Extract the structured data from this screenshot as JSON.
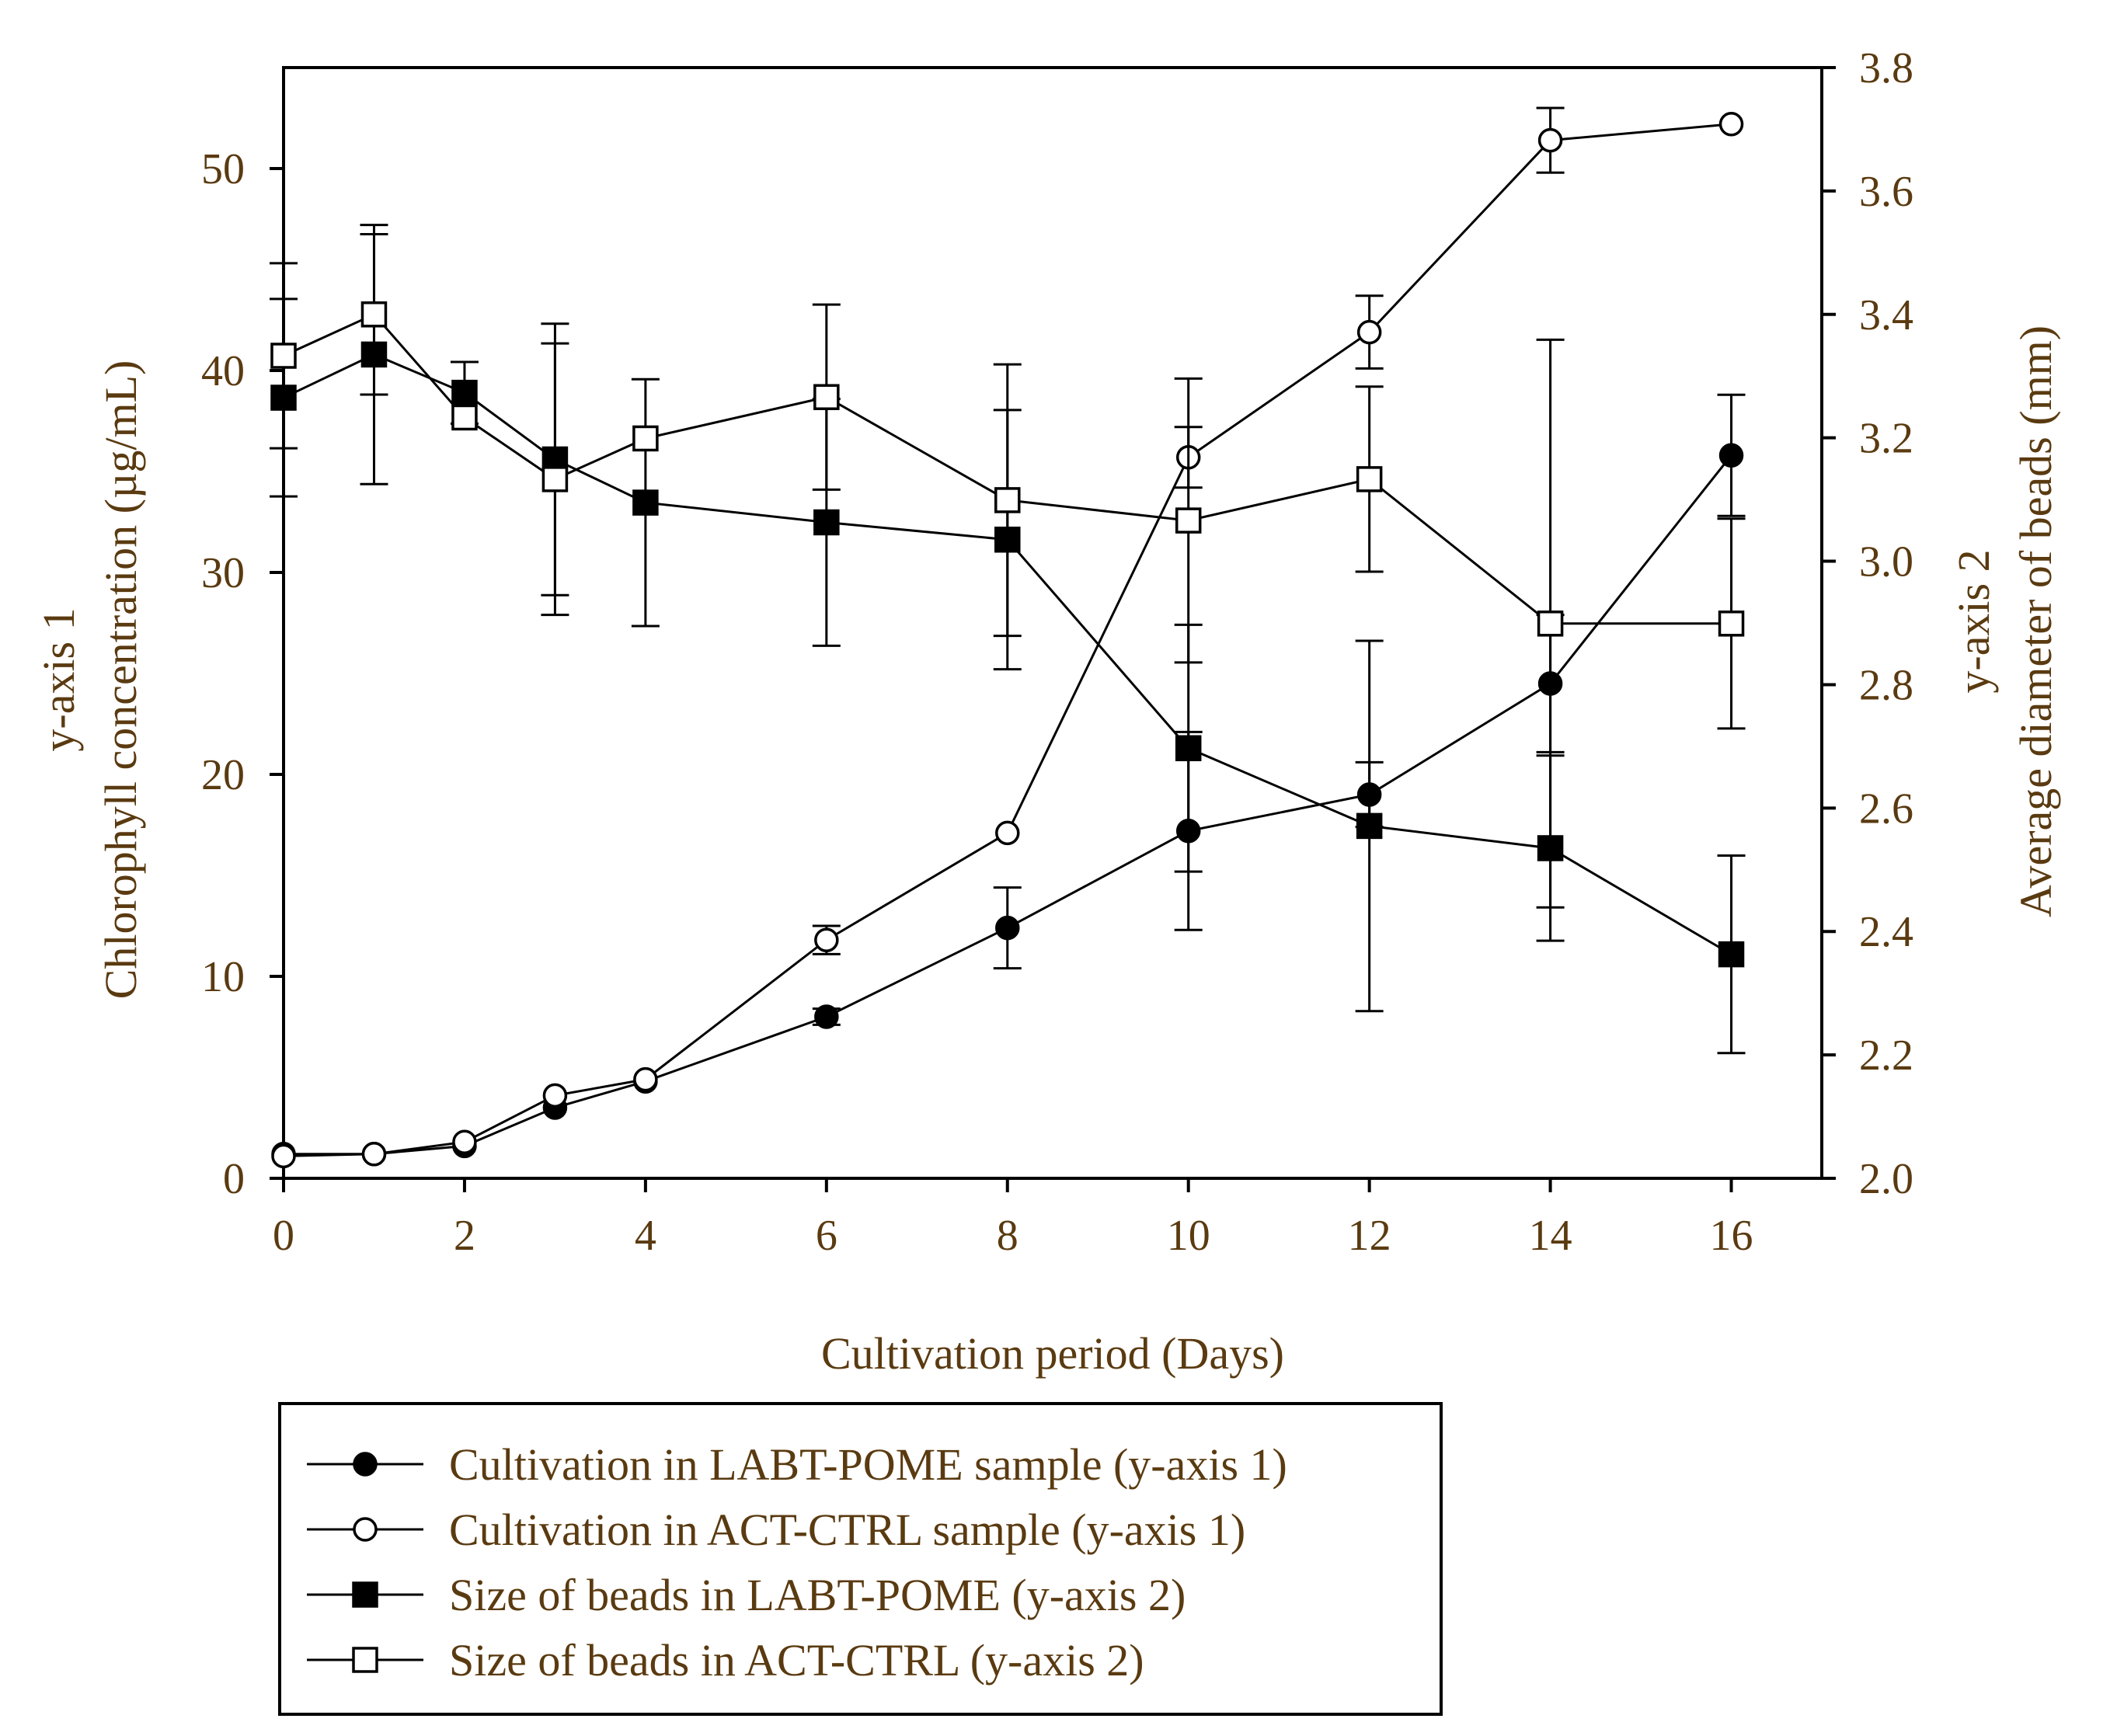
{
  "chart_data": {
    "type": "line",
    "title": "",
    "xlabel": "Cultivation period (Days)",
    "y1": {
      "title_line1": "y-axis 1",
      "title_line2": "Chlorophyll concentration (µg/mL)",
      "ylim": [
        0,
        55
      ],
      "ticks": [
        0,
        10,
        20,
        30,
        40,
        50
      ]
    },
    "y2": {
      "title_line1": "y-axis 2",
      "title_line2": "Average diameter of beads (mm)",
      "ylim": [
        2.0,
        3.8
      ],
      "ticks": [
        "2.0",
        "2.2",
        "2.4",
        "2.6",
        "2.8",
        "3.0",
        "3.2",
        "3.4",
        "3.6",
        "3.8"
      ]
    },
    "xlim": [
      0,
      17
    ],
    "x_ticks": [
      0,
      2,
      4,
      6,
      8,
      10,
      12,
      14,
      16
    ],
    "legend_position": "below",
    "series": [
      {
        "name": "Cultivation in LABT-POME sample (y-axis 1)",
        "axis": "y1",
        "marker": "filled-circle",
        "x": [
          0,
          1,
          2,
          3,
          4,
          6,
          8,
          10,
          12,
          14,
          16
        ],
        "y": [
          1.2,
          1.2,
          1.6,
          3.5,
          4.8,
          8.0,
          12.4,
          17.2,
          19.0,
          24.5,
          35.8
        ],
        "err": [
          0,
          0,
          0,
          0,
          0,
          0.4,
          2.0,
          4.9,
          1.6,
          3.4,
          3.0
        ]
      },
      {
        "name": "Cultivation in ACT-CTRL sample (y-axis 1)",
        "axis": "y1",
        "marker": "open-circle",
        "x": [
          0,
          1,
          2,
          3,
          4,
          6,
          8,
          10,
          12,
          14,
          16
        ],
        "y": [
          1.1,
          1.2,
          1.8,
          4.1,
          4.9,
          11.8,
          17.1,
          35.7,
          41.9,
          51.4,
          52.2
        ],
        "err": [
          0,
          0,
          0,
          0,
          0,
          0.7,
          0,
          1.5,
          1.8,
          1.6,
          0
        ]
      },
      {
        "name": "Size of beads in LABT-POME (y-axis 2)",
        "axis": "y2",
        "marker": "filled-square",
        "x": [
          0,
          1,
          2,
          3,
          4,
          6,
          8,
          10,
          12,
          14,
          16
        ],
        "y": [
          3.265,
          3.335,
          3.273,
          3.165,
          3.095,
          3.063,
          3.035,
          2.697,
          2.571,
          2.535,
          2.363
        ],
        "err": [
          0.16,
          0.21,
          0.05,
          0.22,
          0.2,
          0.2,
          0.21,
          0.2,
          0.3,
          0.15,
          0.16
        ]
      },
      {
        "name": "Size of beads in ACT-CTRL (y-axis 2)",
        "axis": "y2",
        "marker": "open-square",
        "x": [
          0,
          1,
          2,
          3,
          4,
          6,
          8,
          10,
          12,
          14,
          16
        ],
        "y": [
          3.333,
          3.4,
          3.233,
          3.133,
          3.199,
          3.266,
          3.099,
          3.066,
          3.133,
          2.899,
          2.899
        ],
        "err": [
          0.15,
          0.13,
          0,
          0.22,
          0,
          0.15,
          0.22,
          0.23,
          0.15,
          0.46,
          0.17
        ]
      }
    ]
  }
}
